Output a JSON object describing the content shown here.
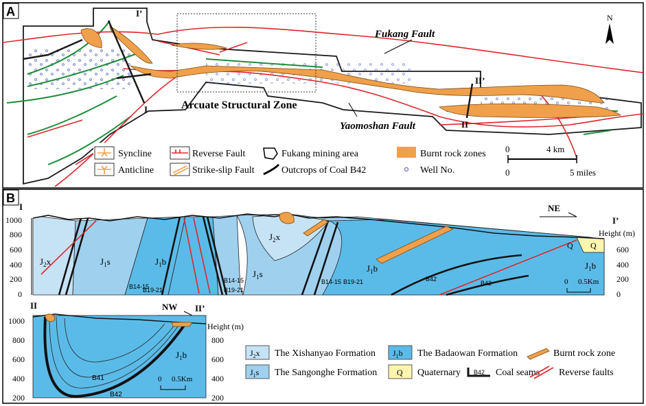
{
  "panel_a": {
    "letter": "A",
    "fukang_fault": "Fukang Fault",
    "yaomoshan_fault": "Yaomoshan Fault",
    "arcuate_zone": "Arcuate Structural Zone",
    "section_i": "I",
    "section_i_prime": "I’",
    "section_ii": "II",
    "section_ii_prime": "II’",
    "north": "N",
    "scale": {
      "zero_top": "0",
      "km": "4 km",
      "zero_bottom": "0",
      "miles": "5 miles"
    },
    "legend": [
      {
        "key": "syncline",
        "label": "Syncline"
      },
      {
        "key": "anticline",
        "label": "Anticline"
      },
      {
        "key": "reverse_fault",
        "label": "Reverse Fault"
      },
      {
        "key": "strike_slip",
        "label": "Strike-slip Fault"
      },
      {
        "key": "mining_area",
        "label": "Fukang mining area"
      },
      {
        "key": "outcrops",
        "label": "Outcrops of Coal B42"
      },
      {
        "key": "burnt_zones",
        "label": "Burnt rock zones"
      },
      {
        "key": "well",
        "label": "Well No."
      }
    ]
  },
  "panel_b": {
    "letter": "B",
    "section1": {
      "start": "I",
      "end": "I’",
      "direction": "NE",
      "height_label": "Height (m)",
      "y_ticks_left": [
        "1000",
        "800",
        "600",
        "400",
        "200",
        "0"
      ],
      "y_ticks_right": [
        "600",
        "400",
        "200",
        "0"
      ],
      "formations": {
        "j2x_a": "J",
        "j2x_b": "J",
        "j1s_a": "J",
        "j1s_b": "J",
        "j1b_a": "J",
        "j1b_b": "J",
        "j1b_c": "J",
        "q_a": "Q",
        "q_b": "Q"
      },
      "seams": [
        "B14-15",
        "B19-21",
        "B14-15",
        "B19-21",
        "B14-15",
        "B19-21",
        "B42",
        "B42"
      ],
      "scale": {
        "zero": "0",
        "km": "0.5Km"
      }
    },
    "section2": {
      "start": "II",
      "end": "II’",
      "direction": "NW",
      "height_label": "Height (m)",
      "y_ticks_left": [
        "1000",
        "800",
        "600",
        "400",
        "200"
      ],
      "y_ticks_right": [
        "800",
        "600",
        "400",
        "200"
      ],
      "formation": "J",
      "seams": [
        "B41",
        "B42"
      ],
      "scale": {
        "zero": "0",
        "km": "0.5Km"
      }
    },
    "legend": [
      {
        "key": "j2x",
        "sym": "J",
        "sub1": "2",
        "sub2": "x",
        "label": "The Xishanyao Formation"
      },
      {
        "key": "j1b",
        "sym": "J",
        "sub1": "1",
        "sub2": "b",
        "label": "The Badaowan Formation"
      },
      {
        "key": "burnt",
        "label": "Burnt rock zone"
      },
      {
        "key": "j1s",
        "sym": "J",
        "sub1": "1",
        "sub2": "s",
        "label": "The Sangonghe Formation"
      },
      {
        "key": "q",
        "sym": "Q",
        "label": "Quaternary"
      },
      {
        "key": "coal",
        "sym": "B42",
        "label": "Coal seams"
      },
      {
        "key": "rev",
        "label": "Reverse faults"
      }
    ]
  },
  "colors": {
    "j2x": "#c6e3f5",
    "j1s": "#9fd1ef",
    "j1b": "#5bbbe8",
    "quaternary": "#fdf5b0",
    "burnt": "#f0a04a",
    "fault_red": "#e0242a",
    "fold_green": "#1e8c3a",
    "mining_black": "#1a1a1a"
  },
  "icons": [
    "north-arrow-icon",
    "syncline-icon",
    "anticline-icon",
    "reverse-fault-icon",
    "strike-slip-icon",
    "mining-area-icon",
    "coal-outcrop-icon",
    "burnt-zone-icon",
    "well-icon"
  ]
}
